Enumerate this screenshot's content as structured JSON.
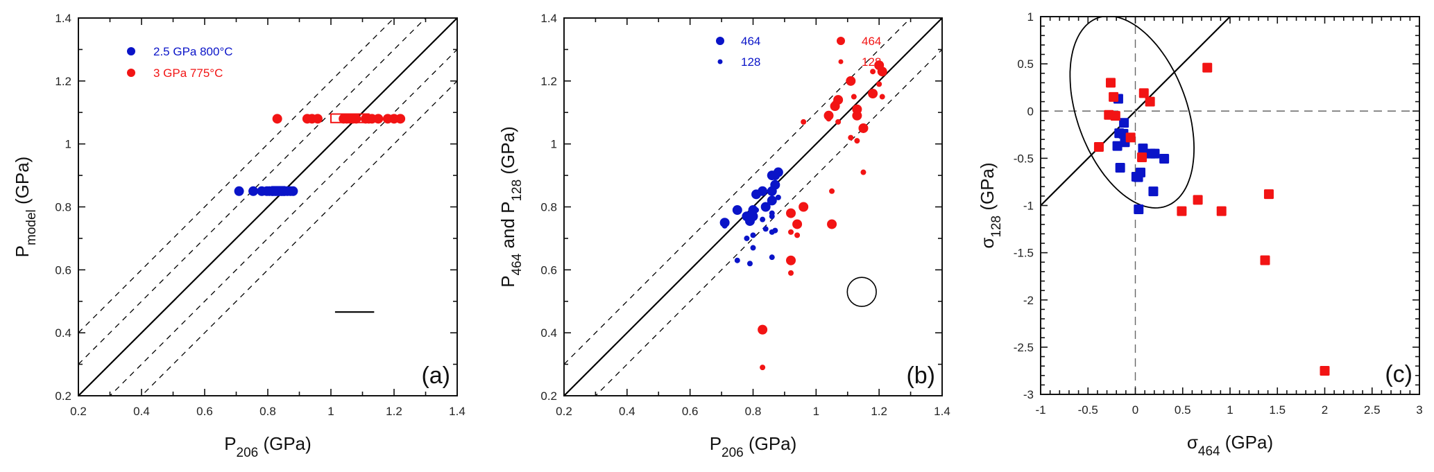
{
  "colors": {
    "blue": "#0a14c8",
    "red": "#f21414",
    "axis": "#111111",
    "refline": "#000000",
    "zero_line": "#666666"
  },
  "chart_data": [
    {
      "id": "a",
      "type": "scatter",
      "panel_label": "(a)",
      "xlabel": {
        "main": "P",
        "sub": "206",
        "suffix": " (GPa)"
      },
      "ylabel": {
        "main": "P",
        "sub": "model",
        "suffix": " (GPa)"
      },
      "xlim": [
        0.2,
        1.4
      ],
      "ylim": [
        0.2,
        1.4
      ],
      "xticks": [
        0.2,
        0.4,
        0.6,
        0.8,
        1.0,
        1.2,
        1.4
      ],
      "xtick_labels": [
        "0.2",
        "0.4",
        "0.6",
        "0.8",
        "1",
        "1.2",
        "1.4"
      ],
      "yticks": [
        0.2,
        0.4,
        0.6,
        0.8,
        1.0,
        1.2,
        1.4
      ],
      "ytick_labels": [
        "0.2",
        "0.4",
        "0.6",
        "0.8",
        "1",
        "1.2",
        "1.4"
      ],
      "minor_step": 0.1,
      "grid": false,
      "legend": {
        "placement": "top-left",
        "entries": [
          {
            "label": "2.5 GPa 800°C",
            "color": "blue",
            "marker": "circle-large"
          },
          {
            "label": "3 GPa 775°C",
            "color": "red",
            "marker": "circle-large"
          }
        ]
      },
      "reference_lines": [
        {
          "type": "y=x+c",
          "offset": 0.0,
          "style": "solid"
        },
        {
          "type": "y=x+c",
          "offset": 0.1,
          "style": "dashed"
        },
        {
          "type": "y=x+c",
          "offset": 0.2,
          "style": "dashed"
        },
        {
          "type": "y=x+c",
          "offset": -0.1,
          "style": "dashed"
        },
        {
          "type": "y=x+c",
          "offset": -0.2,
          "style": "dashed"
        }
      ],
      "series": [
        {
          "name": "2.5 GPa 800°C",
          "color": "blue",
          "marker": "circle-large",
          "points": [
            [
              0.709,
              0.85
            ],
            [
              0.754,
              0.85
            ],
            [
              0.781,
              0.85
            ],
            [
              0.797,
              0.85
            ],
            [
              0.805,
              0.85
            ],
            [
              0.815,
              0.85
            ],
            [
              0.825,
              0.85
            ],
            [
              0.834,
              0.85
            ],
            [
              0.844,
              0.85
            ],
            [
              0.852,
              0.85
            ],
            [
              0.862,
              0.85
            ],
            [
              0.872,
              0.85
            ],
            [
              0.88,
              0.85
            ]
          ]
        },
        {
          "name": "3 GPa 775°C",
          "color": "red",
          "marker": "circle-large",
          "points": [
            [
              0.83,
              1.08
            ],
            [
              0.925,
              1.08
            ],
            [
              0.94,
              1.08
            ],
            [
              0.958,
              1.08
            ],
            [
              1.04,
              1.08
            ],
            [
              1.05,
              1.08
            ],
            [
              1.06,
              1.08
            ],
            [
              1.07,
              1.08
            ],
            [
              1.08,
              1.08
            ],
            [
              1.11,
              1.08
            ],
            [
              1.12,
              1.08
            ],
            [
              1.13,
              1.08
            ],
            [
              1.15,
              1.08
            ],
            [
              1.18,
              1.08
            ],
            [
              1.2,
              1.08
            ],
            [
              1.22,
              1.08
            ]
          ]
        }
      ],
      "boxes": [
        {
          "color": "blue",
          "x": [
            0.813,
            0.854
          ],
          "y": [
            0.837,
            0.864
          ]
        },
        {
          "color": "red",
          "x": [
            1.0,
            1.12
          ],
          "y": [
            1.068,
            1.095
          ]
        }
      ],
      "error_bar": {
        "x": [
          1.013,
          1.137
        ],
        "y": 0.466
      }
    },
    {
      "id": "b",
      "type": "scatter",
      "panel_label": "(b)",
      "xlabel": {
        "main": "P",
        "sub": "206",
        "suffix": " (GPa)"
      },
      "ylabel": {
        "main": "P",
        "sub": "464",
        "middle": " and P",
        "sub2": "128",
        "suffix": " (GPa)"
      },
      "xlim": [
        0.2,
        1.4
      ],
      "ylim": [
        0.2,
        1.4
      ],
      "xticks": [
        0.2,
        0.4,
        0.6,
        0.8,
        1.0,
        1.2,
        1.4
      ],
      "xtick_labels": [
        "0.2",
        "0.4",
        "0.6",
        "0.8",
        "1",
        "1.2",
        "1.4"
      ],
      "yticks": [
        0.2,
        0.4,
        0.6,
        0.8,
        1.0,
        1.2,
        1.4
      ],
      "ytick_labels": [
        "0.2",
        "0.4",
        "0.6",
        "0.8",
        "1",
        "1.2",
        "1.4"
      ],
      "minor_step": 0.1,
      "grid": false,
      "legend": {
        "placement": "top-center",
        "entries": [
          {
            "label": "464",
            "color": "blue",
            "marker": "circle-large"
          },
          {
            "label": "128",
            "color": "blue",
            "marker": "circle-small"
          },
          {
            "label": "464",
            "color": "red",
            "marker": "circle-large"
          },
          {
            "label": "128",
            "color": "red",
            "marker": "circle-small"
          }
        ]
      },
      "reference_lines": [
        {
          "type": "y=x+c",
          "offset": 0.0,
          "style": "solid"
        },
        {
          "type": "y=x+c",
          "offset": 0.1,
          "style": "dashed"
        },
        {
          "type": "y=x+c",
          "offset": -0.1,
          "style": "dashed"
        }
      ],
      "series": [
        {
          "name": "464 (2.5 GPa 800°C)",
          "color": "blue",
          "marker": "circle-large",
          "points": [
            [
              0.71,
              0.75
            ],
            [
              0.75,
              0.79
            ],
            [
              0.78,
              0.77
            ],
            [
              0.79,
              0.755
            ],
            [
              0.8,
              0.77
            ],
            [
              0.8,
              0.79
            ],
            [
              0.81,
              0.84
            ],
            [
              0.83,
              0.85
            ],
            [
              0.84,
              0.8
            ],
            [
              0.86,
              0.85
            ],
            [
              0.86,
              0.9
            ],
            [
              0.87,
              0.9
            ],
            [
              0.88,
              0.91
            ],
            [
              0.87,
              0.87
            ],
            [
              0.86,
              0.82
            ]
          ]
        },
        {
          "name": "128 (2.5 GPa 800°C)",
          "color": "blue",
          "marker": "circle-small",
          "points": [
            [
              0.71,
              0.74
            ],
            [
              0.75,
              0.63
            ],
            [
              0.78,
              0.7
            ],
            [
              0.79,
              0.62
            ],
            [
              0.8,
              0.71
            ],
            [
              0.8,
              0.67
            ],
            [
              0.81,
              0.79
            ],
            [
              0.83,
              0.76
            ],
            [
              0.84,
              0.73
            ],
            [
              0.86,
              0.78
            ],
            [
              0.86,
              0.64
            ],
            [
              0.86,
              0.77
            ],
            [
              0.86,
              0.72
            ],
            [
              0.87,
              0.725
            ],
            [
              0.88,
              0.83
            ],
            [
              0.86,
              0.82
            ]
          ]
        },
        {
          "name": "464 (3 GPa 775°C)",
          "color": "red",
          "marker": "circle-large",
          "points": [
            [
              0.83,
              0.41
            ],
            [
              0.92,
              0.63
            ],
            [
              0.92,
              0.78
            ],
            [
              0.94,
              0.745
            ],
            [
              0.96,
              0.8
            ],
            [
              1.05,
              0.745
            ],
            [
              1.04,
              1.09
            ],
            [
              1.06,
              1.12
            ],
            [
              1.07,
              1.14
            ],
            [
              1.11,
              1.2
            ],
            [
              1.13,
              1.09
            ],
            [
              1.13,
              1.11
            ],
            [
              1.15,
              1.05
            ],
            [
              1.18,
              1.16
            ],
            [
              1.2,
              1.25
            ],
            [
              1.21,
              1.23
            ]
          ]
        },
        {
          "name": "128 (3 GPa 775°C)",
          "color": "red",
          "marker": "circle-small",
          "points": [
            [
              0.83,
              0.29
            ],
            [
              0.92,
              0.59
            ],
            [
              0.92,
              0.72
            ],
            [
              0.94,
              0.71
            ],
            [
              0.96,
              1.07
            ],
            [
              1.05,
              0.85
            ],
            [
              1.04,
              1.08
            ],
            [
              1.06,
              1.13
            ],
            [
              1.07,
              1.07
            ],
            [
              1.11,
              1.02
            ],
            [
              1.12,
              1.15
            ],
            [
              1.13,
              1.01
            ],
            [
              1.15,
              0.91
            ],
            [
              1.18,
              1.23
            ],
            [
              1.2,
              1.19
            ],
            [
              1.21,
              1.15
            ]
          ]
        }
      ],
      "error_circle": {
        "center": [
          1.145,
          0.53
        ],
        "radius": 0.046
      }
    },
    {
      "id": "c",
      "type": "scatter",
      "panel_label": "(c)",
      "xlabel": {
        "main": "σ",
        "sub": "464",
        "suffix": " (GPa)"
      },
      "ylabel": {
        "main": "σ",
        "sub": "128",
        "suffix": " (GPa)"
      },
      "xlim": [
        -1,
        3
      ],
      "ylim": [
        -3,
        1
      ],
      "xticks": [
        -1,
        -0.5,
        0,
        0.5,
        1,
        1.5,
        2,
        2.5,
        3
      ],
      "xtick_labels": [
        "-1",
        "-0.5",
        "0",
        "0.5",
        "1",
        "1.5",
        "2",
        "2.5",
        "3"
      ],
      "yticks": [
        -3,
        -2.5,
        -2,
        -1.5,
        -1,
        -0.5,
        0,
        0.5,
        1
      ],
      "ytick_labels": [
        "-3",
        "-2.5",
        "-2",
        "-1.5",
        "-1",
        "-0.5",
        "0",
        "0.5",
        "1"
      ],
      "minor_step": 0.1,
      "grid": false,
      "reference_lines": [
        {
          "type": "y=x+c",
          "offset": 0.0,
          "style": "solid",
          "x_range": [
            -1,
            1
          ]
        },
        {
          "type": "vertical",
          "x": 0,
          "style": "dashed-grey"
        },
        {
          "type": "horizontal",
          "y": 0,
          "style": "dashed-grey"
        }
      ],
      "series": [
        {
          "name": "2.5 GPa 800°C",
          "color": "blue",
          "marker": "square",
          "points": [
            [
              -0.18,
              0.13
            ],
            [
              -0.12,
              -0.125
            ],
            [
              -0.17,
              -0.235
            ],
            [
              -0.125,
              -0.24
            ],
            [
              -0.11,
              -0.33
            ],
            [
              -0.19,
              -0.37
            ],
            [
              0.08,
              -0.395
            ],
            [
              0.165,
              -0.45
            ],
            [
              0.205,
              -0.45
            ],
            [
              0.305,
              -0.505
            ],
            [
              -0.16,
              -0.6
            ],
            [
              0.055,
              -0.65
            ],
            [
              0.01,
              -0.695
            ],
            [
              0.03,
              -0.7
            ],
            [
              0.19,
              -0.85
            ],
            [
              0.035,
              -1.04
            ]
          ]
        },
        {
          "name": "3 GPa 775°C",
          "color": "red",
          "marker": "square",
          "points": [
            [
              -0.26,
              0.3
            ],
            [
              -0.23,
              0.15
            ],
            [
              0.09,
              0.19
            ],
            [
              0.155,
              0.1
            ],
            [
              -0.28,
              -0.04
            ],
            [
              -0.21,
              -0.05
            ],
            [
              -0.05,
              -0.28
            ],
            [
              -0.385,
              -0.38
            ],
            [
              0.07,
              -0.49
            ],
            [
              0.76,
              0.46
            ],
            [
              0.49,
              -1.06
            ],
            [
              0.66,
              -0.94
            ],
            [
              0.91,
              -1.06
            ],
            [
              1.41,
              -0.88
            ],
            [
              1.37,
              -1.58
            ],
            [
              2.0,
              -2.75
            ]
          ]
        }
      ],
      "confidence_ellipse": {
        "center": [
          -0.035,
          -0.01
        ],
        "semi_major": 1.06,
        "semi_minor": 0.58,
        "major_axis_angle_deg": 110
      }
    }
  ]
}
